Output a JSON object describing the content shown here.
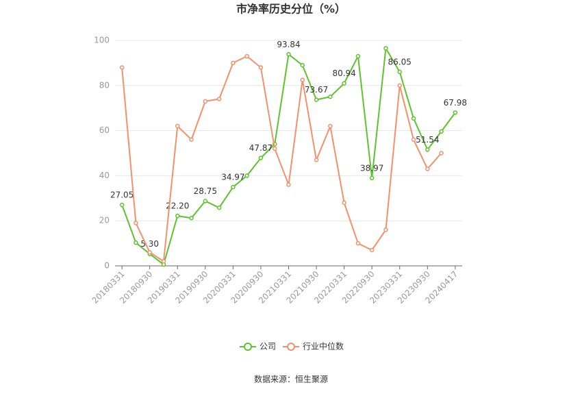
{
  "chart_data": {
    "type": "line",
    "title": "市净率历史分位（%）",
    "categories": [
      "20180331",
      null,
      "20180930",
      null,
      "20190331",
      null,
      "20190930",
      null,
      "20200331",
      null,
      "20200930",
      null,
      "20210331",
      null,
      "20210930",
      null,
      "20220331",
      null,
      "20220930",
      null,
      "20230331",
      null,
      "20230930",
      null,
      "20240417"
    ],
    "series": [
      {
        "name": "公司",
        "color": "#5ac42a",
        "values": [
          27.05,
          10.3,
          5.3,
          0.6,
          22.2,
          21.2,
          28.75,
          25.8,
          34.97,
          40,
          47.87,
          54,
          93.84,
          89,
          73.67,
          75,
          80.94,
          93,
          38.97,
          96.5,
          86.05,
          65.4,
          51.54,
          59.6,
          67.98
        ],
        "value_labels": [
          "27.05",
          null,
          "5.30",
          null,
          "22.20",
          null,
          "28.75",
          null,
          "34.97",
          null,
          "47.87",
          null,
          "93.84",
          null,
          "73.67",
          null,
          "80.94",
          null,
          "38.97",
          null,
          "86.05",
          null,
          "51.54",
          null,
          "67.98"
        ]
      },
      {
        "name": "行业中位数",
        "color": "#f3906a",
        "values": [
          88,
          19,
          6,
          2,
          62,
          56,
          73,
          74,
          90,
          93,
          88,
          52,
          36,
          82.5,
          47,
          62,
          28,
          10,
          7,
          16,
          80,
          56,
          43,
          50,
          null
        ]
      }
    ],
    "ylim": [
      0,
      100
    ],
    "yticks": [
      0,
      20,
      40,
      60,
      80,
      100
    ],
    "grid": true,
    "legend": "bottom",
    "source": "数据来源：恒生聚源"
  }
}
